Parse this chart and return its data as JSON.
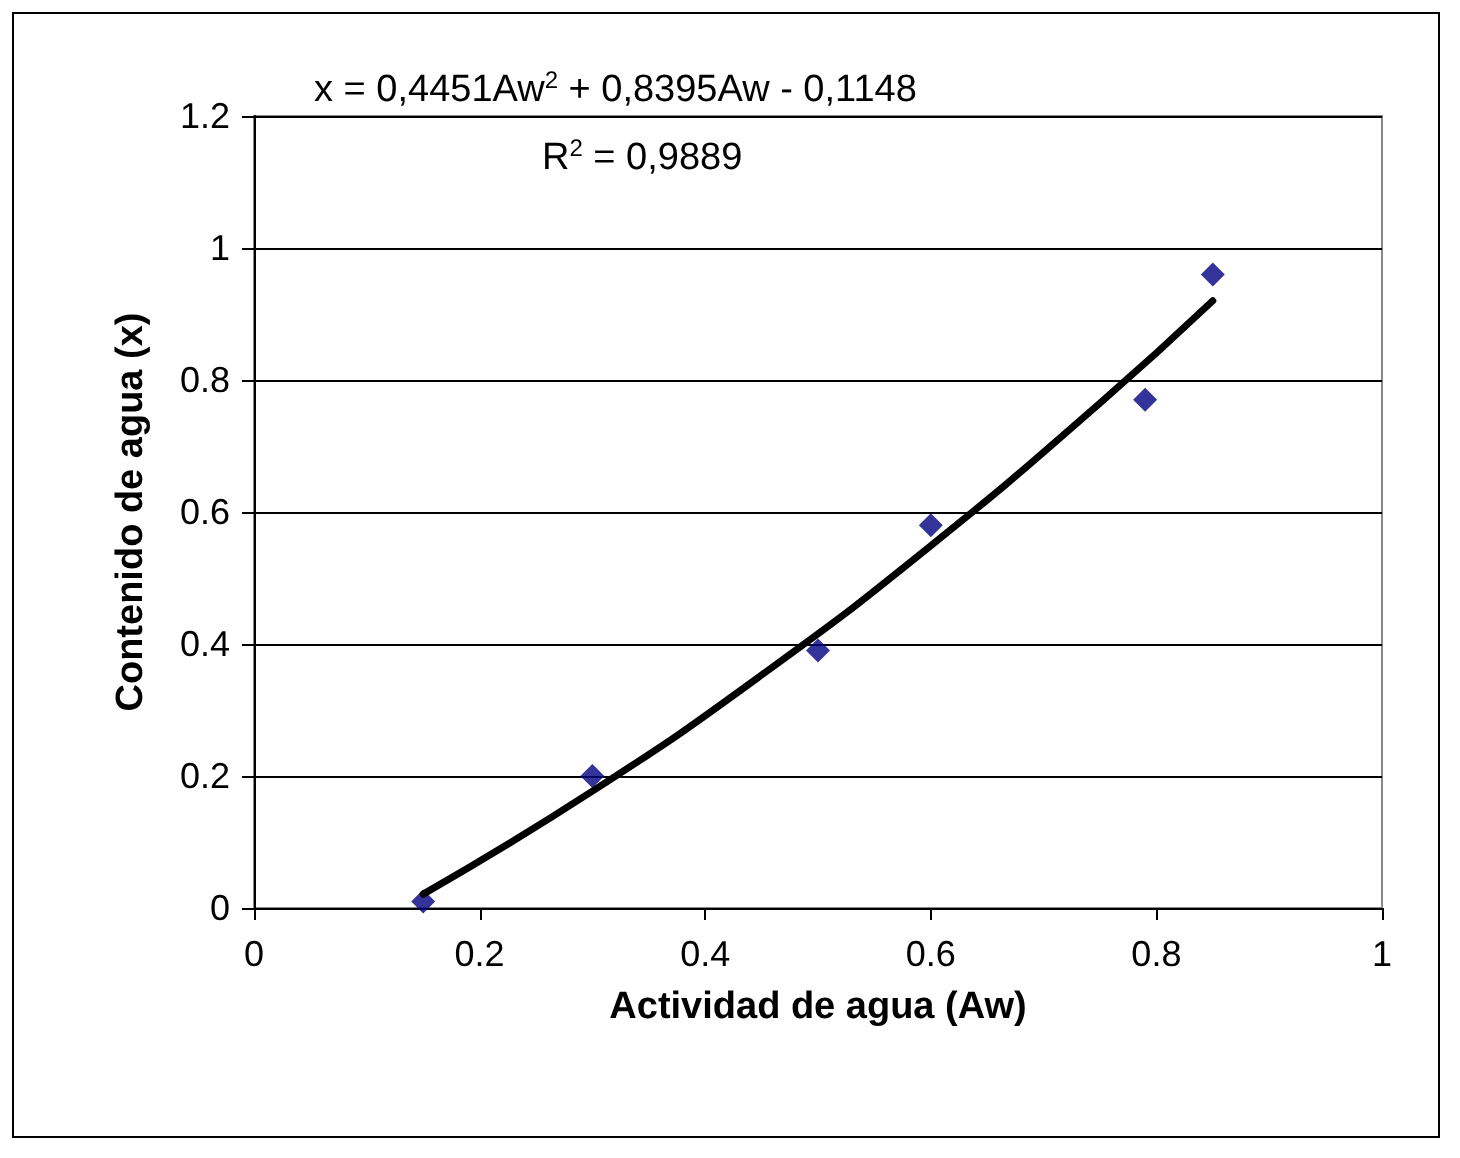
{
  "chart_data": {
    "type": "scatter",
    "xlabel": "Actividad de agua (Aw)",
    "ylabel": "Contenido de agua (x)",
    "annotations": [
      "x = 0,4451Aw$^{2}$ + 0,8395Aw - 0,1148",
      "R$^{2}$ = 0,9889"
    ],
    "series": [
      {
        "color": "#000080",
        "marker": "diamond",
        "x": [
          0.15,
          0.3,
          0.5,
          0.6,
          0.79,
          0.85
        ],
        "values": [
          0.01,
          0.2,
          0.39,
          0.58,
          0.77,
          0.96
        ]
      },
      {
        "type": "line",
        "color": "#000000",
        "marker": "none",
        "x": [
          0.15,
          0.3,
          0.45,
          0.6,
          0.75,
          0.85
        ],
        "values": [
          0.021,
          0.177,
          0.353,
          0.549,
          0.765,
          0.92
        ]
      }
    ],
    "xlim": [
      0,
      1
    ],
    "xticks": [
      0,
      0.2,
      0.4,
      0.6,
      0.8,
      1
    ],
    "ylim": [
      0,
      1.2
    ],
    "yticks": [
      0,
      0.2,
      0.4,
      0.6,
      0.8,
      1,
      1.2
    ],
    "grid": "y"
  }
}
